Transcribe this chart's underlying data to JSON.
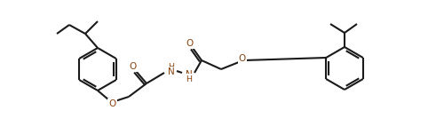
{
  "background": "#ffffff",
  "lc": "#1a1a1a",
  "oc": "#8B4513",
  "lw": 1.5,
  "figsize": [
    4.91,
    1.51
  ],
  "dpi": 100,
  "xlim": [
    0,
    491
  ],
  "ylim": [
    0,
    151
  ]
}
